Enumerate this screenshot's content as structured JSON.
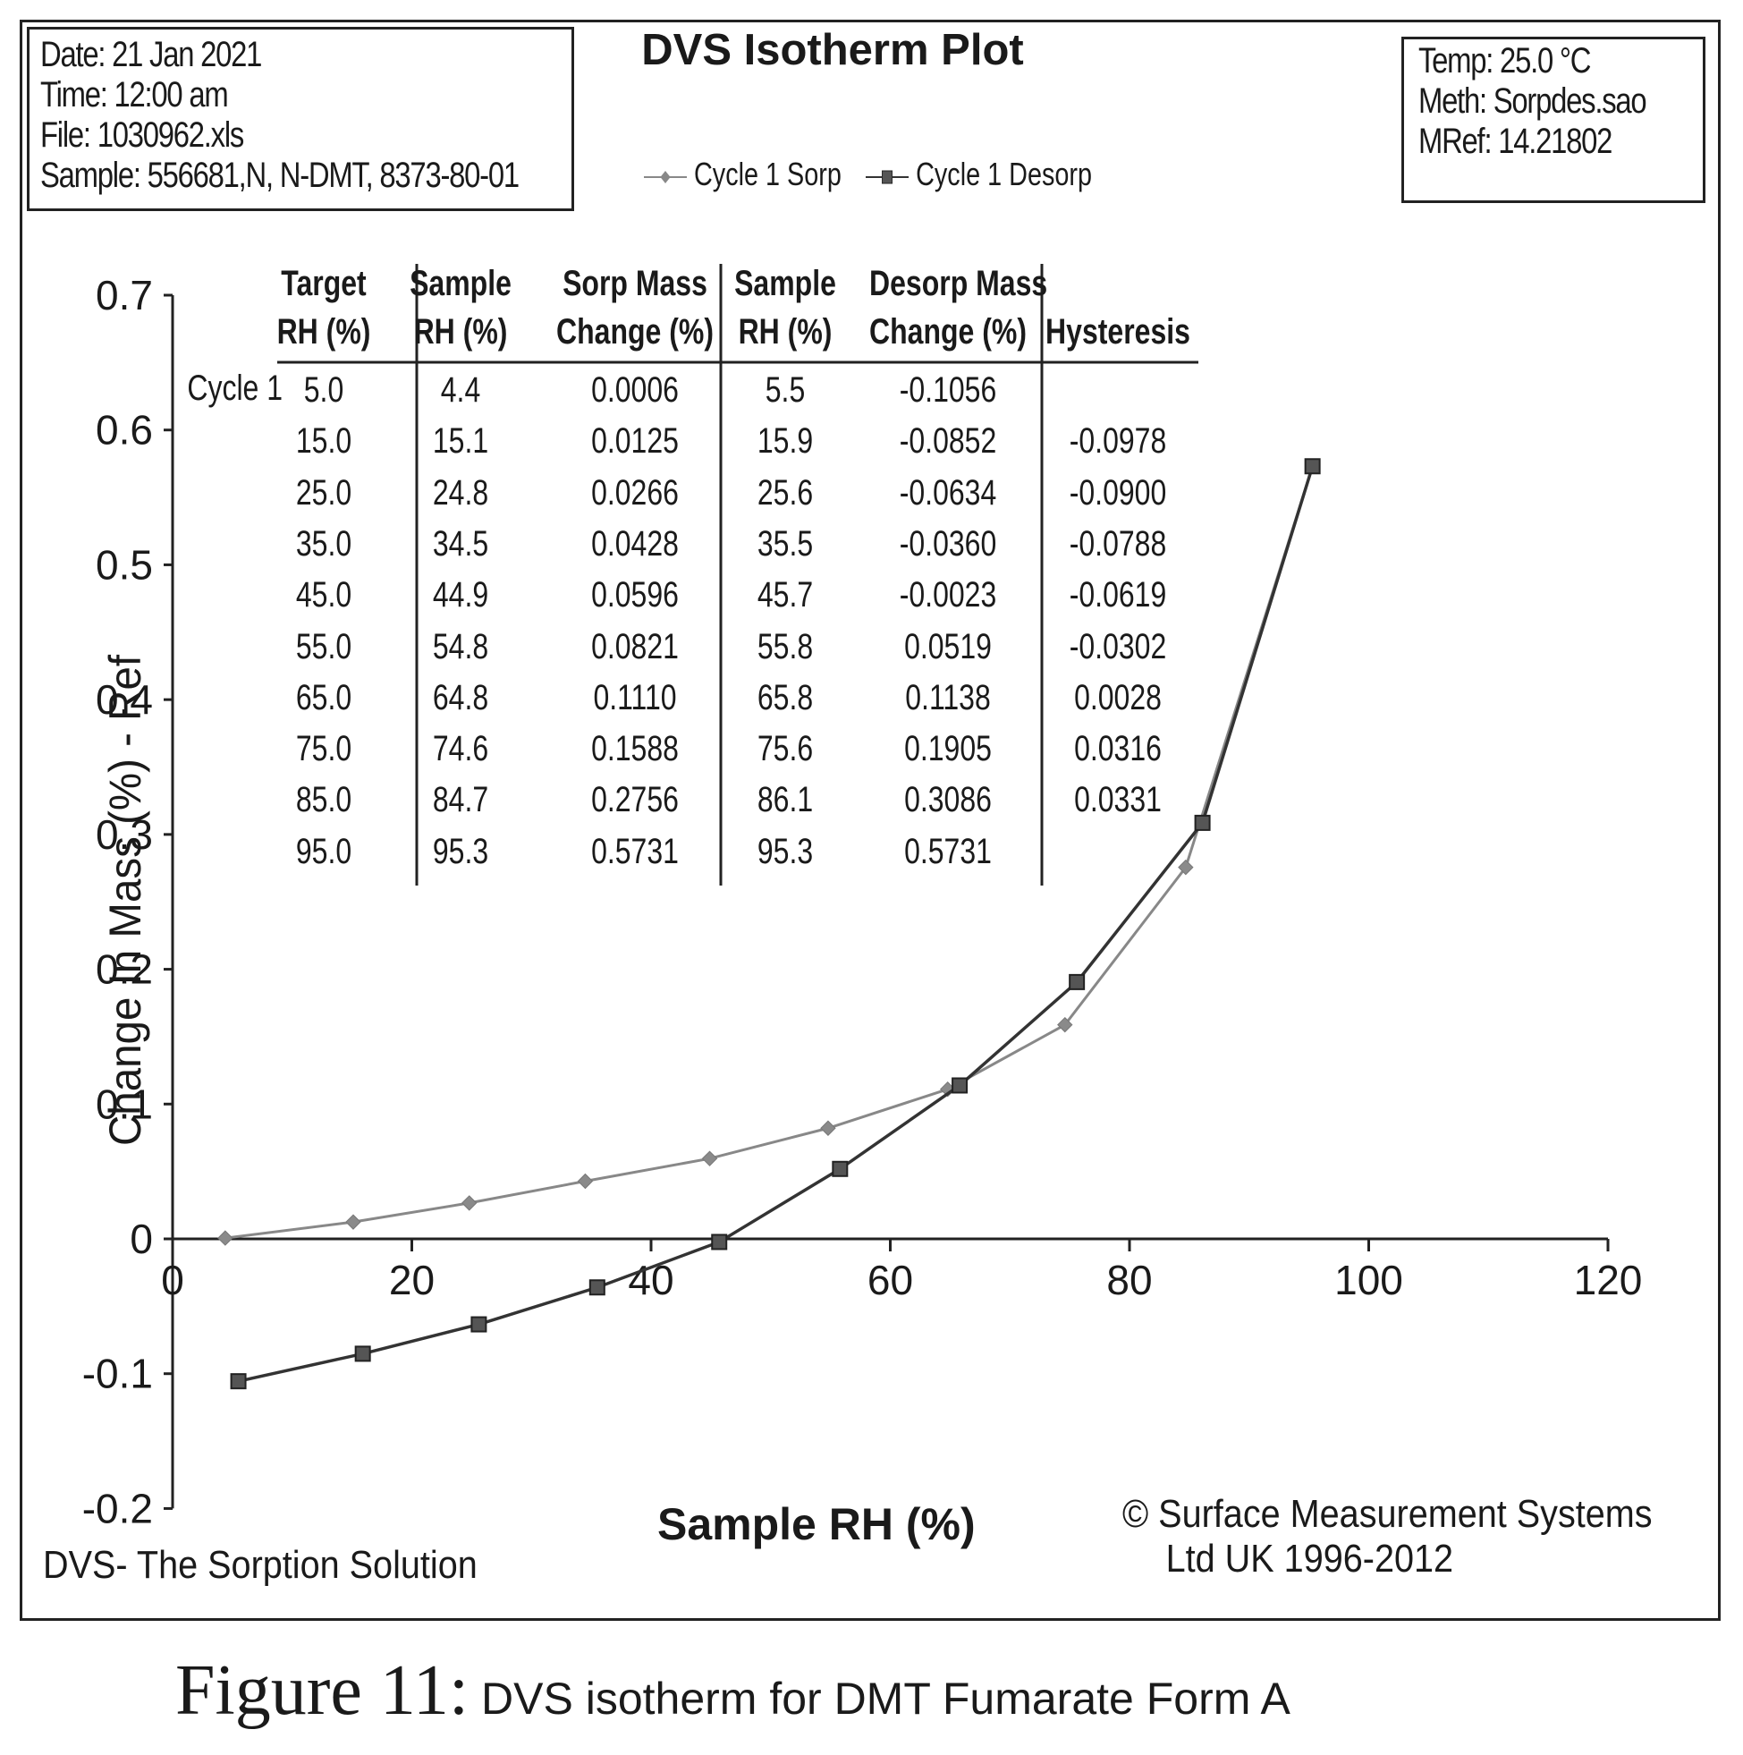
{
  "info_left": {
    "date": "Date:  21 Jan 2021",
    "time": "Time:  12:00 am",
    "file": "File:  1030962.xls",
    "sample": "Sample:  556681,N, N-DMT, 8373-80-01"
  },
  "info_right": {
    "temp": "Temp:  25.0 °C",
    "meth": "Meth:  Sorpdes.sao",
    "mref": "MRef:  14.21802"
  },
  "footer": {
    "left": "DVS-  The Sorption Solution",
    "right_line1": "© Surface Measurement Systems",
    "right_line2": "Ltd UK 1996-2012"
  },
  "caption": {
    "figure": "Figure 11:",
    "text": " DVS isotherm for DMT Fumarate Form A"
  },
  "table": {
    "cycle_label": "Cycle 1",
    "headers": [
      [
        "Target",
        "RH (%)"
      ],
      [
        "Sample",
        "RH (%)"
      ],
      [
        "Sorp Mass",
        "Change (%)"
      ],
      [
        "Sample",
        "RH (%)"
      ],
      [
        "Desorp Mass",
        "Change (%)"
      ],
      [
        "",
        "Hysteresis"
      ]
    ],
    "rows": [
      [
        "5.0",
        "4.4",
        "0.0006",
        "5.5",
        "-0.1056",
        ""
      ],
      [
        "15.0",
        "15.1",
        "0.0125",
        "15.9",
        "-0.0852",
        "-0.0978"
      ],
      [
        "25.0",
        "24.8",
        "0.0266",
        "25.6",
        "-0.0634",
        "-0.0900"
      ],
      [
        "35.0",
        "34.5",
        "0.0428",
        "35.5",
        "-0.0360",
        "-0.0788"
      ],
      [
        "45.0",
        "44.9",
        "0.0596",
        "45.7",
        "-0.0023",
        "-0.0619"
      ],
      [
        "55.0",
        "54.8",
        "0.0821",
        "55.8",
        "0.0519",
        "-0.0302"
      ],
      [
        "65.0",
        "64.8",
        "0.1110",
        "65.8",
        "0.1138",
        "0.0028"
      ],
      [
        "75.0",
        "74.6",
        "0.1588",
        "75.6",
        "0.1905",
        "0.0316"
      ],
      [
        "85.0",
        "84.7",
        "0.2756",
        "86.1",
        "0.3086",
        "0.0331"
      ],
      [
        "95.0",
        "95.3",
        "0.5731",
        "95.3",
        "0.5731",
        ""
      ]
    ]
  },
  "chart_data": {
    "type": "line",
    "title": "DVS Isotherm Plot",
    "xlabel": "Sample RH (%)",
    "ylabel": "Change In Mass (%) - Ref",
    "xlim": [
      0,
      120
    ],
    "ylim": [
      -0.2,
      0.7
    ],
    "xticks": [
      "0",
      "20",
      "40",
      "60",
      "80",
      "100",
      "120"
    ],
    "yticks": [
      "0.7",
      "0.6",
      "0.5",
      "0.4",
      "0.3",
      "0.2",
      "0.1",
      "0",
      "-0.1",
      "-0.2"
    ],
    "legend_position": "top-center",
    "grid": false,
    "series": [
      {
        "name": "Cycle 1 Sorp",
        "marker": "diamond",
        "color": "#888888",
        "x": [
          4.4,
          15.1,
          24.8,
          34.5,
          44.9,
          54.8,
          64.8,
          74.6,
          84.7,
          95.3
        ],
        "y": [
          0.0006,
          0.0125,
          0.0266,
          0.0428,
          0.0596,
          0.0821,
          0.111,
          0.1588,
          0.2756,
          0.5731
        ]
      },
      {
        "name": "Cycle 1 Desorp",
        "marker": "square",
        "color": "#333333",
        "x": [
          5.5,
          15.9,
          25.6,
          35.5,
          45.7,
          55.8,
          65.8,
          75.6,
          86.1,
          95.3
        ],
        "y": [
          -0.1056,
          -0.0852,
          -0.0634,
          -0.036,
          -0.0023,
          0.0519,
          0.1138,
          0.1905,
          0.3086,
          0.5731
        ]
      }
    ]
  }
}
